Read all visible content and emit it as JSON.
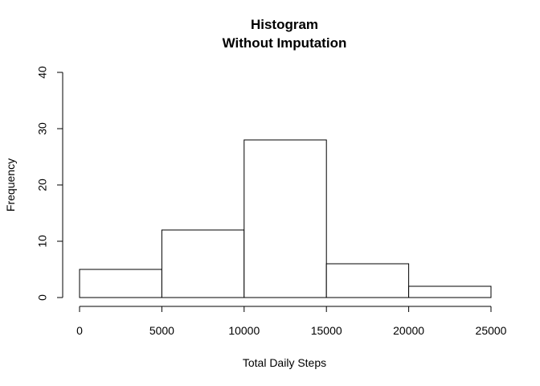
{
  "chart_data": {
    "type": "bar",
    "title_lines": [
      "Histogram",
      "Without Imputation"
    ],
    "xlabel": "Total Daily Steps",
    "ylabel": "Frequency",
    "bins": [
      {
        "from": 0,
        "to": 5000,
        "count": 5
      },
      {
        "from": 5000,
        "to": 10000,
        "count": 12
      },
      {
        "from": 10000,
        "to": 15000,
        "count": 28
      },
      {
        "from": 15000,
        "to": 20000,
        "count": 6
      },
      {
        "from": 20000,
        "to": 25000,
        "count": 2
      }
    ],
    "xlim": [
      0,
      25000
    ],
    "ylim": [
      0,
      40
    ],
    "x_ticks": [
      "0",
      "5000",
      "10000",
      "15000",
      "20000",
      "25000"
    ],
    "y_ticks": [
      "0",
      "10",
      "20",
      "30",
      "40"
    ],
    "bar_fill": "#ffffff",
    "bar_stroke": "#000000",
    "grid": false
  }
}
